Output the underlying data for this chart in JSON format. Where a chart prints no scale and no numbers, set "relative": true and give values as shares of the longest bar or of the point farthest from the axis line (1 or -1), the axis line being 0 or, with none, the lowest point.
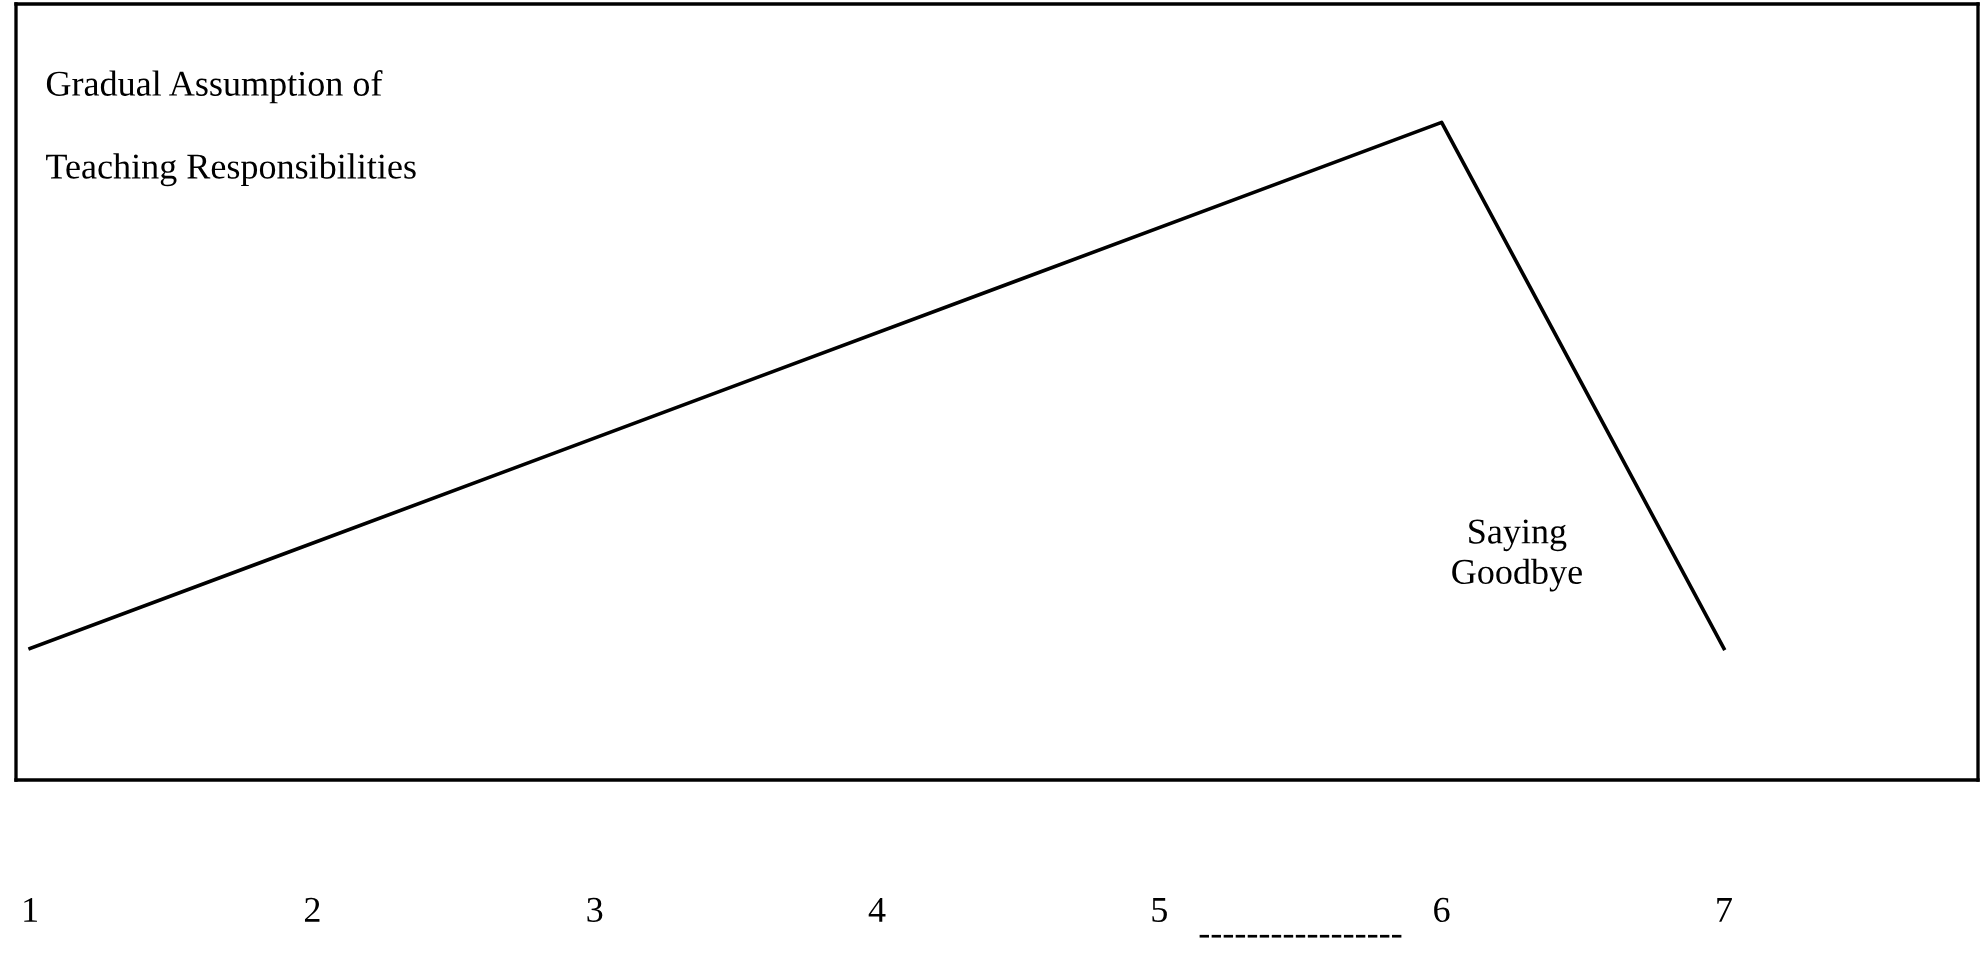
{
  "chart_data": {
    "type": "line",
    "relative": true,
    "x": [
      1,
      6,
      7
    ],
    "series": [
      {
        "color": "#000000",
        "values": [
          0.2,
          1,
          0.2
        ]
      }
    ],
    "xlim": [
      0.95,
      7.9
    ],
    "xticks": [
      1,
      2,
      3,
      4,
      5,
      6,
      7
    ],
    "tick_labels": "x",
    "grid": false,
    "legend": false,
    "marker": "none",
    "line_style": "solid",
    "annotations": [
      "Gradual Assumption of\nTeaching Responsibilities",
      "Saying\nGoodbye",
      "-----------------"
    ]
  }
}
